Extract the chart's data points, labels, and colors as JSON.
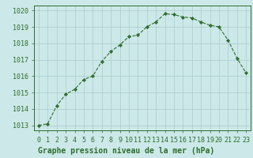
{
  "x": [
    0,
    1,
    2,
    3,
    4,
    5,
    6,
    7,
    8,
    9,
    10,
    11,
    12,
    13,
    14,
    15,
    16,
    17,
    18,
    19,
    20,
    21,
    22,
    23
  ],
  "y": [
    1013.0,
    1013.1,
    1014.2,
    1014.9,
    1015.2,
    1015.8,
    1016.0,
    1016.9,
    1017.5,
    1017.9,
    1018.4,
    1018.5,
    1019.0,
    1019.3,
    1019.8,
    1019.75,
    1019.6,
    1019.55,
    1019.3,
    1019.1,
    1019.0,
    1018.2,
    1017.1,
    1016.2
  ],
  "line_color": "#2d6e2d",
  "marker": "D",
  "marker_size": 2.2,
  "bg_color": "#cce8e8",
  "grid_color": "#aacccc",
  "axis_color": "#2d6e2d",
  "xlabel": "Graphe pression niveau de la mer (hPa)",
  "xlabel_color": "#2d6e2d",
  "xlabel_fontsize": 7,
  "yticks": [
    1013,
    1014,
    1015,
    1016,
    1017,
    1018,
    1019,
    1020
  ],
  "xticks": [
    0,
    1,
    2,
    3,
    4,
    5,
    6,
    7,
    8,
    9,
    10,
    11,
    12,
    13,
    14,
    15,
    16,
    17,
    18,
    19,
    20,
    21,
    22,
    23
  ],
  "ylim": [
    1012.7,
    1020.3
  ],
  "xlim": [
    -0.5,
    23.5
  ],
  "tick_fontsize": 6,
  "tick_color": "#2d6e2d"
}
